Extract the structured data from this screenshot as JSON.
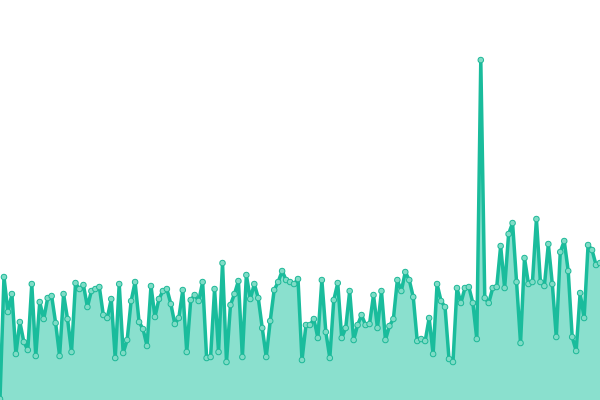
{
  "chart_data": {
    "type": "area",
    "title": "",
    "xlabel": "",
    "ylabel": "",
    "grid": false,
    "legend": "none",
    "markers": true,
    "ylim": [
      0,
      400
    ],
    "colors": {
      "line": "#1abc9c",
      "fill": "#8ae0ce",
      "marker_fill": "#7fdcc6",
      "marker_stroke": "#1fb898"
    },
    "series": [
      {
        "values": [
          1,
          123,
          88,
          106,
          46,
          78,
          58,
          50,
          116,
          44,
          98,
          81,
          102,
          104,
          77,
          44,
          106,
          81,
          48,
          117,
          111,
          115,
          93,
          109,
          111,
          113,
          85,
          82,
          101,
          42,
          116,
          47,
          60,
          99,
          118,
          78,
          71,
          54,
          114,
          83,
          101,
          109,
          111,
          96,
          76,
          82,
          110,
          48,
          100,
          105,
          99,
          118,
          42,
          43,
          111,
          48,
          137,
          38,
          95,
          106,
          119,
          43,
          125,
          101,
          116,
          102,
          72,
          43,
          79,
          110,
          118,
          129,
          120,
          118,
          116,
          121,
          40,
          75,
          75,
          81,
          62,
          120,
          68,
          42,
          100,
          117,
          62,
          72,
          109,
          60,
          75,
          85,
          75,
          76,
          105,
          72,
          109,
          60,
          74,
          81,
          120,
          109,
          128,
          120,
          103,
          59,
          61,
          59,
          82,
          46,
          116,
          99,
          93,
          41,
          38,
          112,
          97,
          112,
          113,
          97,
          61,
          340,
          102,
          97,
          112,
          113,
          154,
          112,
          166,
          177,
          118,
          57,
          142,
          116,
          118,
          181,
          118,
          114,
          156,
          116,
          63,
          148,
          159,
          129,
          63,
          49,
          107,
          82,
          155,
          150,
          135,
          137
        ]
      }
    ]
  }
}
